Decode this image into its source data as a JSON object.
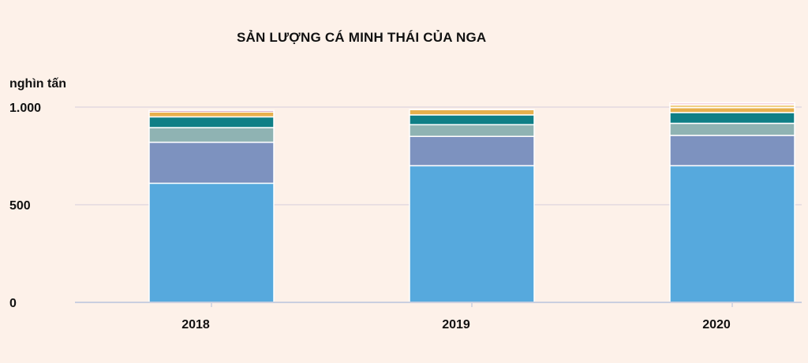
{
  "chart_data": {
    "type": "bar",
    "stacked": true,
    "title": "SẢN LƯỢNG CÁ MINH THÁI CỦA NGA",
    "ylabel": "nghìn tấn",
    "xlabel": "",
    "categories": [
      "2018",
      "2019",
      "2020"
    ],
    "ylim": [
      0,
      1000
    ],
    "yticks": [
      0,
      500,
      1000
    ],
    "ytick_labels": [
      "0",
      "500",
      "1.000"
    ],
    "grid": true,
    "legend": "none",
    "series": [
      {
        "color": "#56a9dd",
        "values": [
          610,
          700,
          700
        ]
      },
      {
        "color": "#7d92bf",
        "values": [
          210,
          150,
          155
        ]
      },
      {
        "color": "#8fb3b3",
        "values": [
          75,
          60,
          62
        ]
      },
      {
        "color": "#0f7f86",
        "values": [
          55,
          50,
          55
        ]
      },
      {
        "color": "#e7b04d",
        "values": [
          25,
          27,
          25
        ]
      },
      {
        "color": "#f1cf85",
        "values": [
          0,
          0,
          15
        ]
      },
      {
        "color": "#b05070",
        "values": [
          8,
          0,
          0
        ]
      },
      {
        "color": "#f2c3cf",
        "values": [
          0,
          0,
          10
        ]
      }
    ]
  },
  "colors": {
    "background": "#fdf1e9",
    "grid": "#e9dfe2",
    "axis": "#c9cfe0"
  }
}
